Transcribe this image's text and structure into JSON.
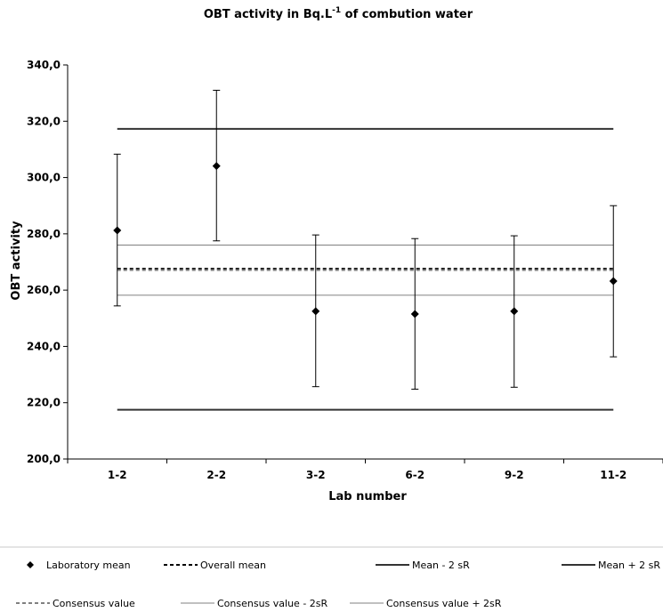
{
  "chart_data": {
    "type": "scatter",
    "title_main": "OBT activity in Bq.L",
    "title_sup": "-1",
    "title_rest": " of combution water",
    "xlabel": "Lab number",
    "ylabel": "OBT activity",
    "categories": [
      "1-2",
      "2-2",
      "3-2",
      "6-2",
      "9-2",
      "11-2"
    ],
    "ylim": [
      200,
      340
    ],
    "yticks": [
      200,
      220,
      240,
      260,
      280,
      300,
      320,
      340
    ],
    "ytick_labels": [
      "200,0",
      "220,0",
      "240,0",
      "260,0",
      "280,0",
      "300,0",
      "320,0",
      "340,0"
    ],
    "grid": false,
    "series": [
      {
        "name": "Laboratory mean",
        "kind": "points_with_error_bars",
        "values": [
          281.2,
          304.1,
          252.5,
          251.5,
          252.5,
          263.2
        ],
        "error_low": [
          254.4,
          277.5,
          225.7,
          224.8,
          225.5,
          236.3
        ],
        "error_high": [
          308.3,
          331.0,
          279.6,
          278.3,
          279.3,
          290.0
        ],
        "color": "#000000"
      },
      {
        "name": "Overall mean",
        "kind": "hline",
        "value": 267.6,
        "color": "#000000",
        "style": "dashed"
      },
      {
        "name": "Mean - 2 sR",
        "kind": "hline",
        "value": 217.5,
        "color": "#333333",
        "style": "solid-thick"
      },
      {
        "name": "Mean + 2 sR",
        "kind": "hline",
        "value": 317.3,
        "color": "#333333",
        "style": "solid-thick"
      },
      {
        "name": "Consensus value",
        "kind": "hline",
        "value": 267.1,
        "color": "#808080",
        "style": "dashed"
      },
      {
        "name": "Consensus value - 2sR",
        "kind": "hline",
        "value": 258.2,
        "color": "#808080",
        "style": "solid-thin"
      },
      {
        "name": "Consensus value + 2sR",
        "kind": "hline",
        "value": 276.0,
        "color": "#808080",
        "style": "solid-thin"
      }
    ],
    "legend_placement": "bottom"
  }
}
